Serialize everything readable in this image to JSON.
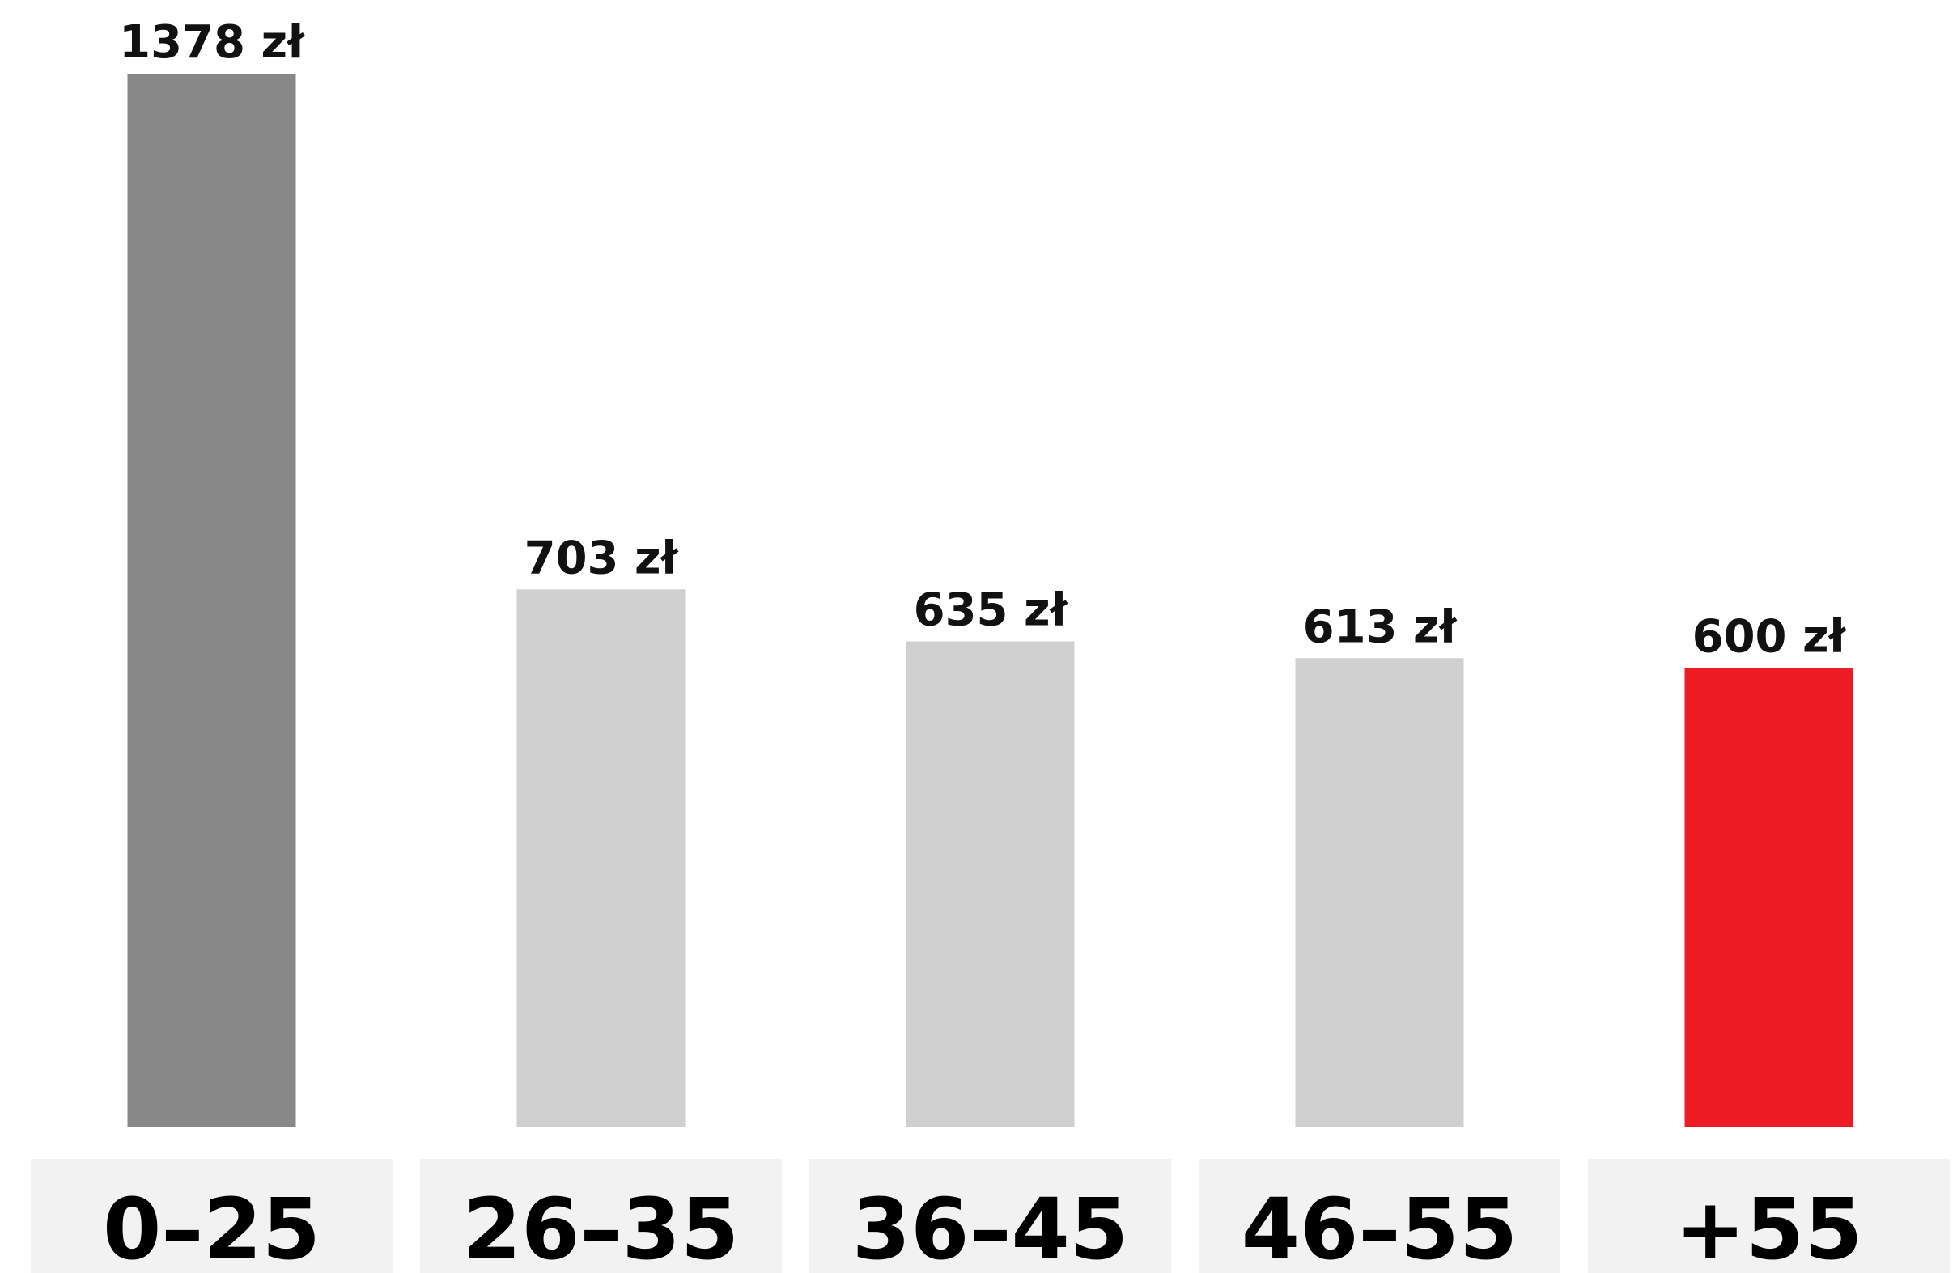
{
  "chart_data": {
    "type": "bar",
    "categories": [
      "0–25",
      "26–35",
      "36–45",
      "46–55",
      "+55"
    ],
    "values": [
      1378,
      703,
      635,
      613,
      600
    ],
    "value_labels": [
      "1378 zł",
      "703 zł",
      "635 zł",
      "613 zł",
      "600 zł"
    ],
    "unit": "zł",
    "title": "",
    "xlabel": "",
    "ylabel": "",
    "ylim": [
      0,
      1378
    ],
    "grid": false,
    "legend": "none",
    "bar_colors": [
      "#888888",
      "#d0d0d0",
      "#d0d0d0",
      "#d0d0d0",
      "#ed1c24"
    ],
    "category_box_color": "#f2f2f2"
  }
}
